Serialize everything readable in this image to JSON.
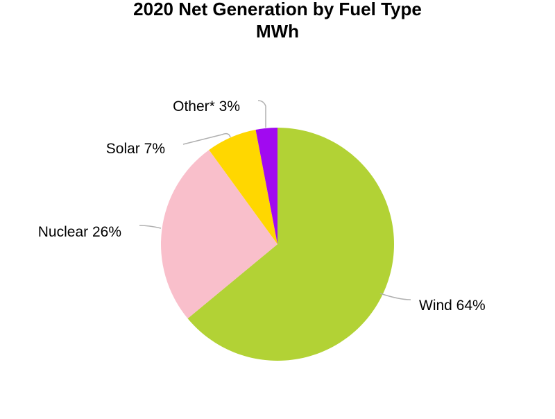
{
  "chart_data": {
    "type": "pie",
    "title": "2020 Net Generation by Fuel Type",
    "subtitle": "MWh",
    "slices": [
      {
        "name": "Wind",
        "value": 64,
        "label": "Wind 64%",
        "color": "#b2d235"
      },
      {
        "name": "Nuclear",
        "value": 26,
        "label": "Nuclear 26%",
        "color": "#f9bfcb"
      },
      {
        "name": "Solar",
        "value": 7,
        "label": "Solar 7%",
        "color": "#ffd700"
      },
      {
        "name": "Other*",
        "value": 3,
        "label": "Other* 3%",
        "color": "#a10af0"
      }
    ],
    "legend": "none",
    "data_labels": "outside-with-leader-lines"
  }
}
